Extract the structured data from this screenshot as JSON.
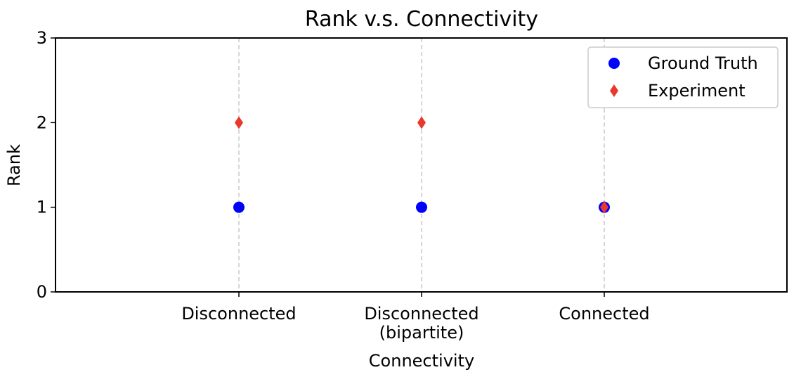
{
  "chart_data": {
    "type": "scatter",
    "title": "Rank v.s. Connectivity",
    "xlabel": "Connectivity",
    "ylabel": "Rank",
    "categories": [
      "Disconnected",
      "Disconnected\n(bipartite)",
      "Connected"
    ],
    "ylim": [
      0,
      3
    ],
    "yticks": [
      "0",
      "1",
      "2",
      "3"
    ],
    "grid": "vertical dashed at each category",
    "legend_position": "top-right",
    "series": [
      {
        "name": "Ground Truth",
        "values": [
          1,
          1,
          1
        ],
        "marker": "circle",
        "color": "#0000ff"
      },
      {
        "name": "Experiment",
        "values": [
          2,
          2,
          1
        ],
        "marker": "diamond",
        "color": "#e8392c"
      }
    ]
  }
}
